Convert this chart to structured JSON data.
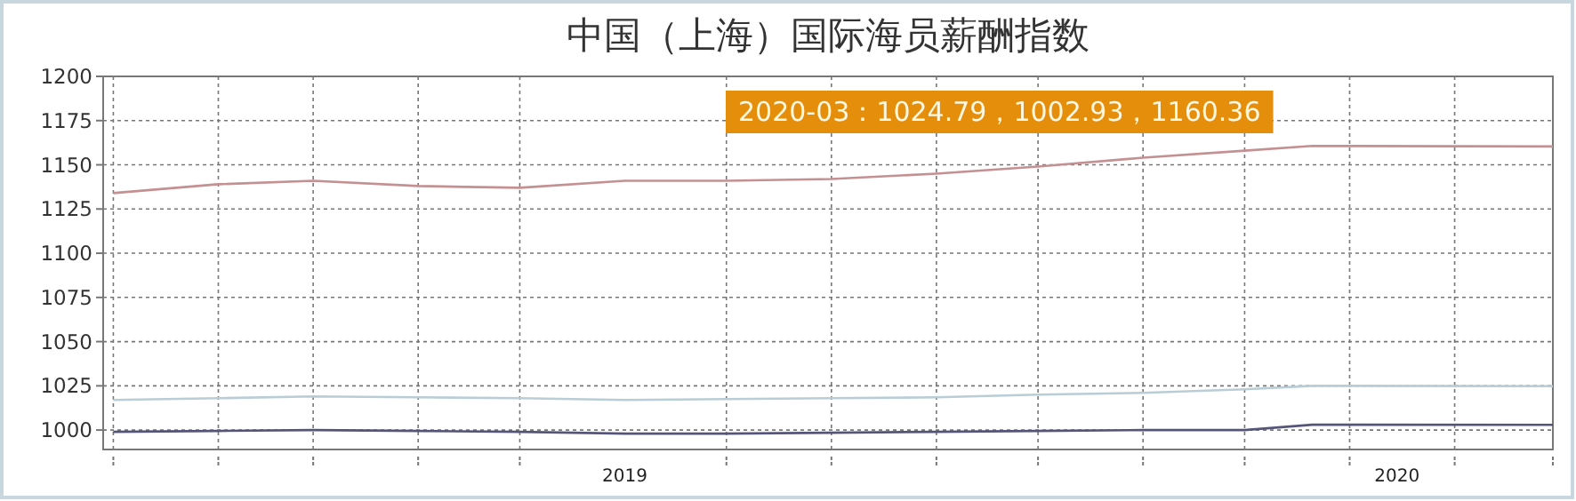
{
  "chart_data": {
    "type": "line",
    "title": "中国（上海）国际海员薪酬指数",
    "annotations": [
      "2020-03：1024.79，1002.93，1160.36"
    ],
    "x": [
      "2019-01-01",
      "2019-02-01",
      "2019-03-01",
      "2019-04-01",
      "2019-05-01",
      "2019-06-01",
      "2019-07-01",
      "2019-08-01",
      "2019-09-01",
      "2019-10-01",
      "2019-11-01",
      "2019-12-01",
      "2019-12-21",
      "2020-03-01"
    ],
    "series": [
      {
        "color": "#b9cdd6",
        "values": [
          1017,
          1018,
          1019,
          1018.5,
          1018,
          1017,
          1017.5,
          1018,
          1018.5,
          1020,
          1021,
          1023,
          1025,
          1024.79
        ]
      },
      {
        "color": "#55557a",
        "values": [
          999,
          999.5,
          1000,
          999.5,
          999,
          998,
          998,
          998.5,
          999,
          999.5,
          1000,
          1000,
          1003,
          1002.93
        ]
      },
      {
        "color": "#c49092",
        "values": [
          1134,
          1139,
          1141,
          1138,
          1137,
          1141,
          1141,
          1142,
          1145,
          1149,
          1154,
          1158,
          1160.7,
          1160.36
        ]
      }
    ],
    "xlim": [
      "2018-12-29",
      "2020-03-01"
    ],
    "xticks": [
      {
        "value": "2019-01-01",
        "label": null
      },
      {
        "value": "2019-02-01",
        "label": null
      },
      {
        "value": "2019-03-01",
        "label": null
      },
      {
        "value": "2019-04-01",
        "label": null
      },
      {
        "value": "2019-05-01",
        "label": null
      },
      {
        "value": "2019-06-01",
        "label": "2019"
      },
      {
        "value": "2019-07-01",
        "label": null
      },
      {
        "value": "2019-08-01",
        "label": null
      },
      {
        "value": "2019-09-01",
        "label": null
      },
      {
        "value": "2019-10-01",
        "label": null
      },
      {
        "value": "2019-11-01",
        "label": null
      },
      {
        "value": "2019-12-01",
        "label": null
      },
      {
        "value": "2020-01-01",
        "label": null
      },
      {
        "value": "2020-01-15",
        "label": "2020"
      },
      {
        "value": "2020-02-01",
        "label": null
      },
      {
        "value": "2020-03-01",
        "label": null
      }
    ],
    "ylim": [
      989,
      1200
    ],
    "yticks": [
      1000,
      1025,
      1050,
      1075,
      1100,
      1125,
      1150,
      1175,
      1200
    ],
    "grid": true,
    "marker": "none",
    "line_style": "solid"
  }
}
